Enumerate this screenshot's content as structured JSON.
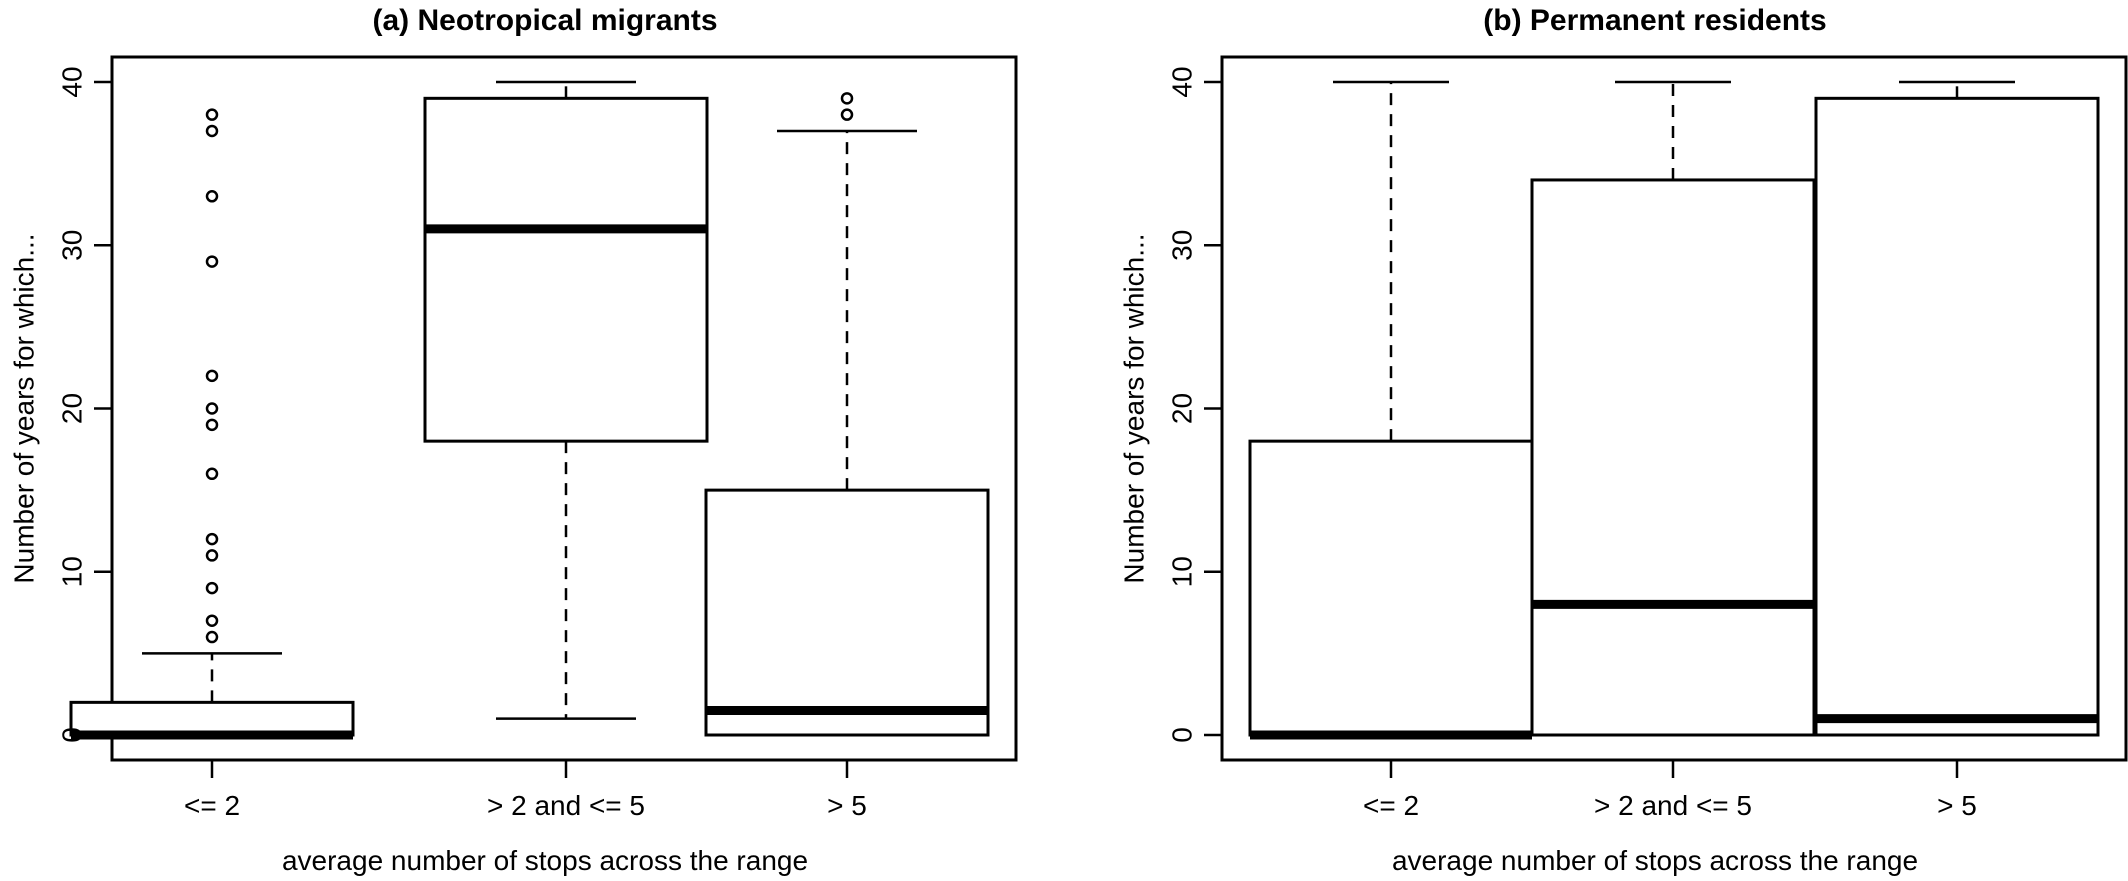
{
  "chart_data": [
    {
      "type": "box",
      "title": "(a) Neotropical migrants",
      "xlabel": "average number of stops across the range",
      "ylabel": "Number of years for which...",
      "ylim": [
        0,
        40
      ],
      "yticks": [
        0,
        10,
        20,
        30,
        40
      ],
      "categories": [
        "<= 2",
        "> 2 and <= 5",
        "> 5"
      ],
      "boxes": [
        {
          "category": "<= 2",
          "whisker_low": 0,
          "q1": 0,
          "median": 0,
          "q3": 2,
          "whisker_high": 5,
          "outliers": [
            6,
            7,
            9,
            11,
            12,
            16,
            19,
            20,
            22,
            29,
            33,
            37,
            38
          ]
        },
        {
          "category": "> 2 and <= 5",
          "whisker_low": 1,
          "q1": 18,
          "median": 31,
          "q3": 39,
          "whisker_high": 40,
          "outliers": []
        },
        {
          "category": "> 5",
          "whisker_low": 0,
          "q1": 0,
          "median": 1.5,
          "q3": 15,
          "whisker_high": 37,
          "outliers": [
            38,
            39
          ]
        }
      ],
      "grid": false
    },
    {
      "type": "box",
      "title": "(b) Permanent residents",
      "xlabel": "average number of stops across the range",
      "ylabel": "Number of years for which...",
      "ylim": [
        0,
        40
      ],
      "yticks": [
        0,
        10,
        20,
        30,
        40
      ],
      "categories": [
        "<= 2",
        "> 2 and <= 5",
        "> 5"
      ],
      "boxes": [
        {
          "category": "<= 2",
          "whisker_low": 0,
          "q1": 0,
          "median": 0,
          "q3": 18,
          "whisker_high": 40,
          "outliers": []
        },
        {
          "category": "> 2 and <= 5",
          "whisker_low": 0,
          "q1": 0,
          "median": 8,
          "q3": 34,
          "whisker_high": 40,
          "outliers": []
        },
        {
          "category": "> 5",
          "whisker_low": 0,
          "q1": 0,
          "median": 1,
          "q3": 39,
          "whisker_high": 40,
          "outliers": []
        }
      ],
      "grid": false
    }
  ]
}
